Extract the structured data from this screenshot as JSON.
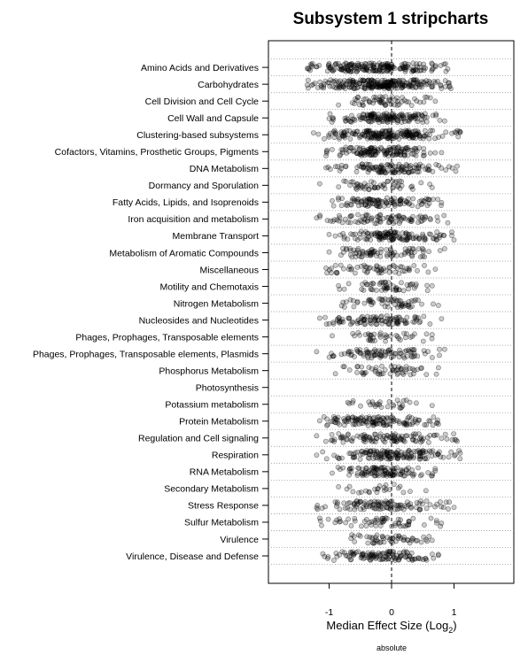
{
  "chart_data": {
    "type": "scatter",
    "title": "Subsystem 1 stripcharts",
    "xlabel": "Median Effect Size (Log",
    "xlabel_subscript": "2",
    "xlabel_suffix": ")",
    "subtitle": "absolute",
    "xlim": [
      -2.0,
      2.0
    ],
    "xticks": [
      -1,
      0,
      1
    ],
    "xtick_labels": [
      "-1",
      "0",
      "1"
    ],
    "reference_line_x": 0,
    "grid": "dotted horizontal lines between categories",
    "point_color": "#000000",
    "point_fill_opacity": 0.2,
    "categories": [
      {
        "name": "Virulence, Disease and Defense",
        "min": -1.1,
        "max": 0.75,
        "density": 120
      },
      {
        "name": "Virulence",
        "min": -0.65,
        "max": 0.65,
        "density": 55
      },
      {
        "name": "Sulfur Metabolism",
        "min": -1.15,
        "max": 0.8,
        "density": 60
      },
      {
        "name": "Stress Response",
        "min": -1.2,
        "max": 1.0,
        "density": 110
      },
      {
        "name": "Secondary Metabolism",
        "min": -0.85,
        "max": 0.55,
        "density": 25
      },
      {
        "name": "RNA Metabolism",
        "min": -0.95,
        "max": 0.7,
        "density": 110
      },
      {
        "name": "Respiration",
        "min": -1.2,
        "max": 1.1,
        "density": 150
      },
      {
        "name": "Regulation and Cell signaling",
        "min": -1.2,
        "max": 1.05,
        "density": 110
      },
      {
        "name": "Protein Metabolism",
        "min": -1.15,
        "max": 0.75,
        "density": 130
      },
      {
        "name": "Potassium metabolism",
        "min": -0.7,
        "max": 0.65,
        "density": 30
      },
      {
        "name": "Photosynthesis",
        "min": 0,
        "max": 0,
        "density": 0
      },
      {
        "name": "Phosphorus Metabolism",
        "min": -0.9,
        "max": 0.75,
        "density": 55
      },
      {
        "name": "Phages, Prophages, Transposable elements, Plasmids",
        "min": -1.2,
        "max": 0.85,
        "density": 90
      },
      {
        "name": "Phages, Prophages, Transposable elements",
        "min": -0.95,
        "max": 0.65,
        "density": 40
      },
      {
        "name": "Nucleosides and Nucleotides",
        "min": -1.15,
        "max": 0.8,
        "density": 100
      },
      {
        "name": "Nitrogen Metabolism",
        "min": -0.8,
        "max": 0.75,
        "density": 60
      },
      {
        "name": "Motility and Chemotaxis",
        "min": -0.85,
        "max": 0.65,
        "density": 55
      },
      {
        "name": "Miscellaneous",
        "min": -1.05,
        "max": 0.7,
        "density": 60
      },
      {
        "name": "Metabolism of Aromatic Compounds",
        "min": -1.0,
        "max": 0.85,
        "density": 80
      },
      {
        "name": "Membrane Transport",
        "min": -1.0,
        "max": 1.0,
        "density": 130
      },
      {
        "name": "Iron acquisition and metabolism",
        "min": -1.2,
        "max": 0.9,
        "density": 90
      },
      {
        "name": "Fatty Acids, Lipids, and Isoprenoids",
        "min": -0.95,
        "max": 0.8,
        "density": 110
      },
      {
        "name": "Dormancy and Sporulation",
        "min": -1.15,
        "max": 0.65,
        "density": 55
      },
      {
        "name": "DNA Metabolism",
        "min": -1.05,
        "max": 1.05,
        "density": 120
      },
      {
        "name": "Cofactors, Vitamins, Prosthetic Groups, Pigments",
        "min": -1.05,
        "max": 0.8,
        "density": 140
      },
      {
        "name": "Clustering-based subsystems",
        "min": -1.25,
        "max": 1.1,
        "density": 200
      },
      {
        "name": "Cell Wall and Capsule",
        "min": -1.0,
        "max": 0.85,
        "density": 150
      },
      {
        "name": "Cell Division and Cell Cycle",
        "min": -0.85,
        "max": 0.7,
        "density": 60
      },
      {
        "name": "Carbohydrates",
        "min": -1.35,
        "max": 0.95,
        "density": 250
      },
      {
        "name": "Amino Acids and Derivatives",
        "min": -1.35,
        "max": 0.9,
        "density": 200
      }
    ]
  }
}
